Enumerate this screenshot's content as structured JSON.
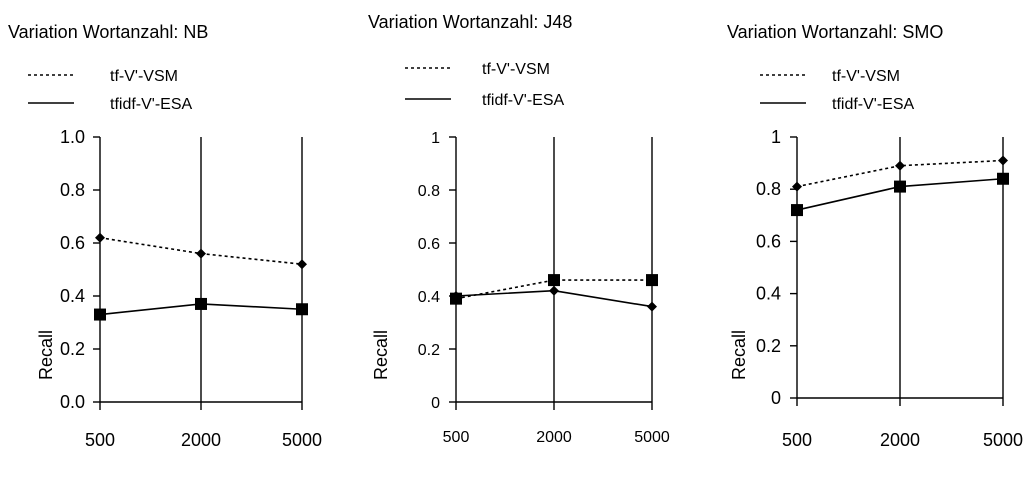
{
  "chart_data": [
    {
      "type": "line",
      "title": "Variation Wortanzahl: NB",
      "ylabel": "Recall",
      "xlabel": "",
      "categories": [
        "500",
        "2000",
        "5000"
      ],
      "ylim": [
        0,
        1
      ],
      "yticks": [
        "0.0",
        "0.2",
        "0.4",
        "0.6",
        "0.8",
        "1.0"
      ],
      "grid": "vertical",
      "legend": "top",
      "series": [
        {
          "name": "tf-V'-VSM",
          "values": [
            0.62,
            0.56,
            0.52
          ],
          "style": "dotted",
          "marker": "diamond"
        },
        {
          "name": "tfidf-V'-ESA",
          "values": [
            0.33,
            0.37,
            0.35
          ],
          "style": "solid",
          "marker": "square"
        }
      ]
    },
    {
      "type": "line",
      "title": "Variation Wortanzahl: J48",
      "ylabel": "Recall",
      "xlabel": "",
      "categories": [
        "500",
        "2000",
        "5000"
      ],
      "ylim": [
        0,
        1
      ],
      "yticks": [
        "0",
        "0.2",
        "0.4",
        "0.6",
        "0.8",
        "1"
      ],
      "grid": "vertical",
      "legend": "top",
      "series": [
        {
          "name": "tf-V'-VSM",
          "values": [
            0.39,
            0.46,
            0.46
          ],
          "style": "dotted",
          "marker": "square"
        },
        {
          "name": "tfidf-V'-ESA",
          "values": [
            0.4,
            0.42,
            0.36
          ],
          "style": "solid",
          "marker": "diamond"
        }
      ]
    },
    {
      "type": "line",
      "title": "Variation Wortanzahl: SMO",
      "ylabel": "Recall",
      "xlabel": "",
      "categories": [
        "500",
        "2000",
        "5000"
      ],
      "ylim": [
        0,
        1
      ],
      "yticks": [
        "0",
        "0.2",
        "0.4",
        "0.6",
        "0.8",
        "1"
      ],
      "grid": "vertical",
      "legend": "top",
      "series": [
        {
          "name": "tf-V'-VSM",
          "values": [
            0.81,
            0.89,
            0.91
          ],
          "style": "dotted",
          "marker": "diamond"
        },
        {
          "name": "tfidf-V'-ESA",
          "values": [
            0.72,
            0.81,
            0.84
          ],
          "style": "solid",
          "marker": "square"
        }
      ]
    }
  ]
}
